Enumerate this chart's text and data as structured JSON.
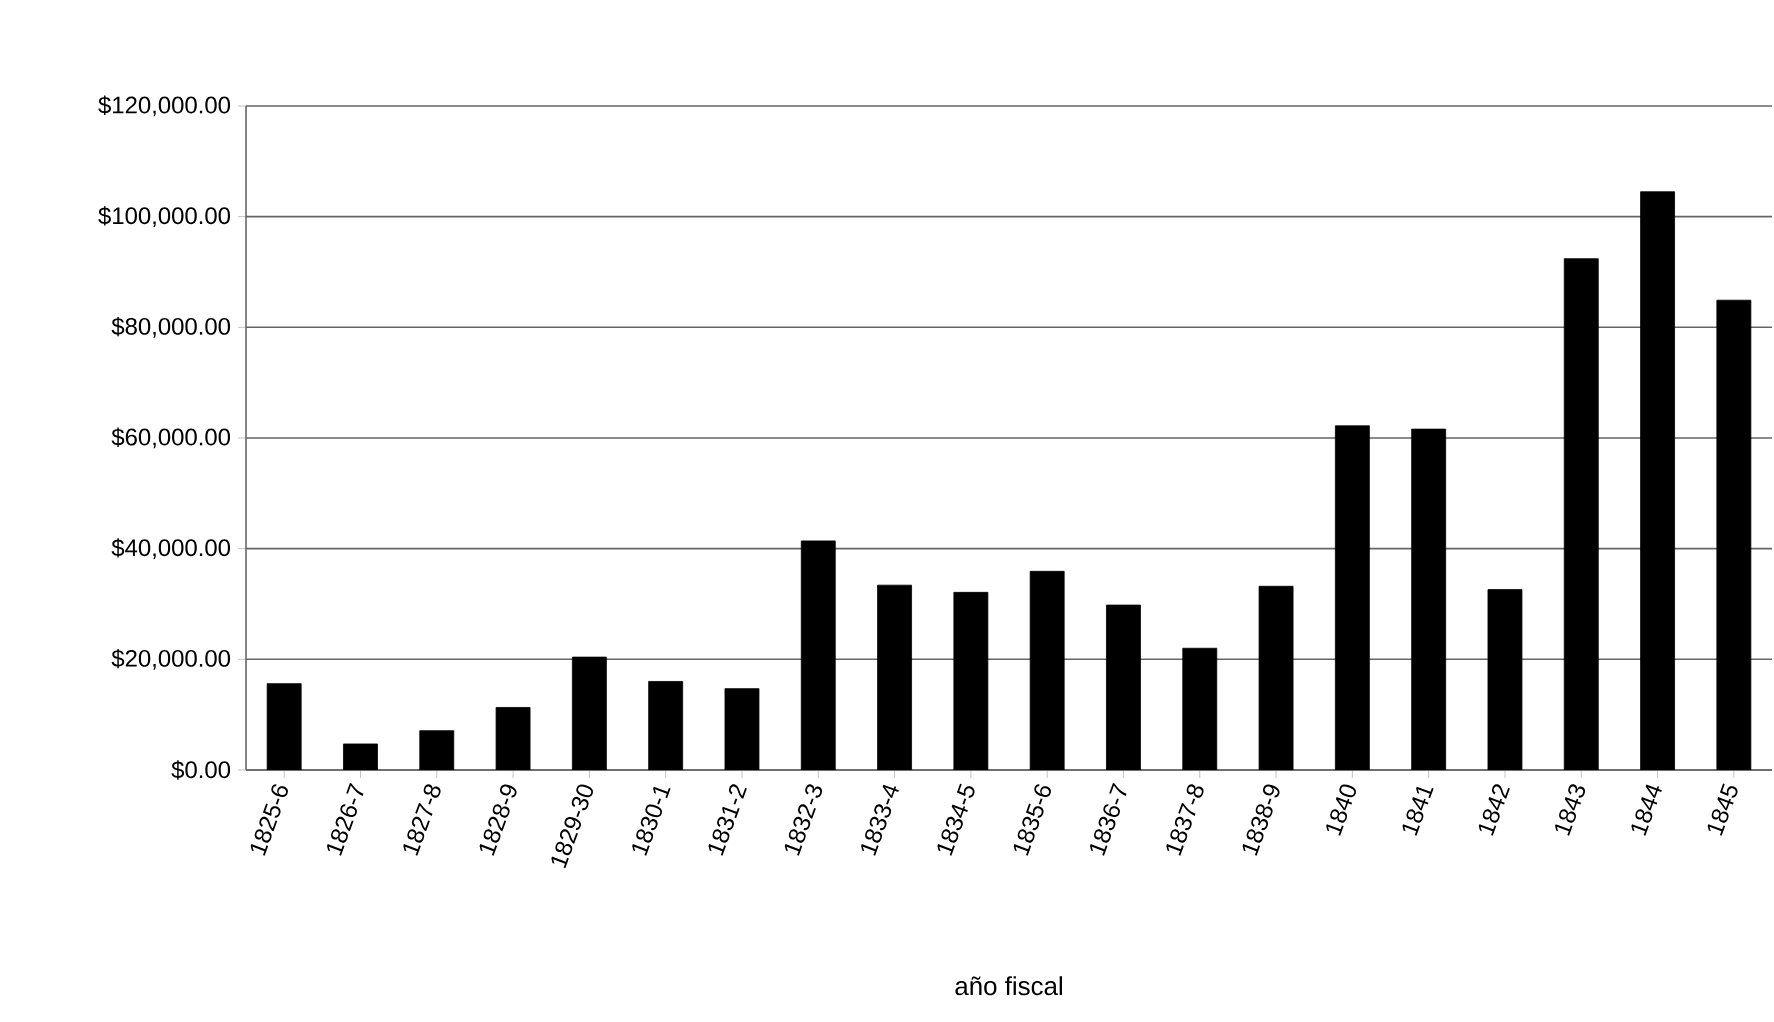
{
  "chart_data": {
    "type": "bar",
    "xlabel": "año fiscal",
    "categories": [
      "1825-6",
      "1826-7",
      "1827-8",
      "1828-9",
      "1829-30",
      "1830-1",
      "1831-2",
      "1832-3",
      "1833-4",
      "1834-5",
      "1835-6",
      "1836-7",
      "1837-8",
      "1838-9",
      "1840",
      "1841",
      "1842",
      "1843",
      "1844",
      "1845"
    ],
    "values": [
      15600,
      4700,
      7100,
      11300,
      20400,
      16000,
      14700,
      41400,
      33400,
      32100,
      35900,
      29800,
      22000,
      33200,
      62200,
      61600,
      32600,
      92400,
      104500,
      84900
    ],
    "color": "#000000",
    "ylim": [
      0,
      120000
    ],
    "yticks": [
      {
        "value": 0,
        "label": "$0.00"
      },
      {
        "value": 20000,
        "label": "$20,000.00"
      },
      {
        "value": 40000,
        "label": "$40,000.00"
      },
      {
        "value": 60000,
        "label": "$60,000.00"
      },
      {
        "value": 80000,
        "label": "$80,000.00"
      },
      {
        "value": 100000,
        "label": "$100,000.00"
      },
      {
        "value": 120000,
        "label": "$120,000.00"
      }
    ],
    "grid": "y"
  }
}
